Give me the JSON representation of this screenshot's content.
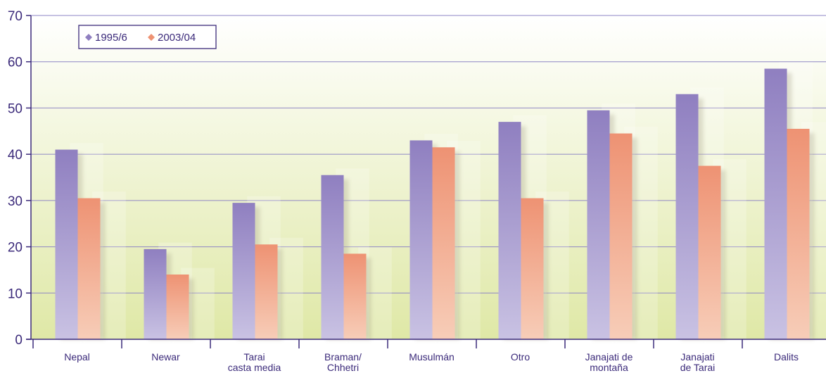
{
  "chart_data": {
    "type": "bar",
    "categories": [
      [
        "Nepal"
      ],
      [
        "Newar"
      ],
      [
        "Tarai",
        "casta media"
      ],
      [
        "Braman/",
        "Chhetri"
      ],
      [
        "Musulmán"
      ],
      [
        "Otro"
      ],
      [
        "Janajati de",
        "montaña"
      ],
      [
        "Janajati",
        "de Tarai"
      ],
      [
        "Dalits"
      ]
    ],
    "series": [
      {
        "name": "1995/6",
        "color": "#8f7fc0",
        "values": [
          41,
          19.5,
          29.5,
          35.5,
          43,
          47,
          49.5,
          53,
          58.5
        ]
      },
      {
        "name": "2003/04",
        "color": "#ee9273",
        "values": [
          30.5,
          14,
          20.5,
          18.5,
          41.5,
          30.5,
          44.5,
          37.5,
          45.5
        ]
      }
    ],
    "ylim": [
      0,
      70
    ],
    "yticks": [
      "0",
      "10",
      "20",
      "30",
      "40",
      "50",
      "60",
      "70"
    ],
    "grid": true,
    "legend_position": "top-left",
    "background_gradient": [
      "#e3eab1",
      "#ffffff"
    ]
  }
}
